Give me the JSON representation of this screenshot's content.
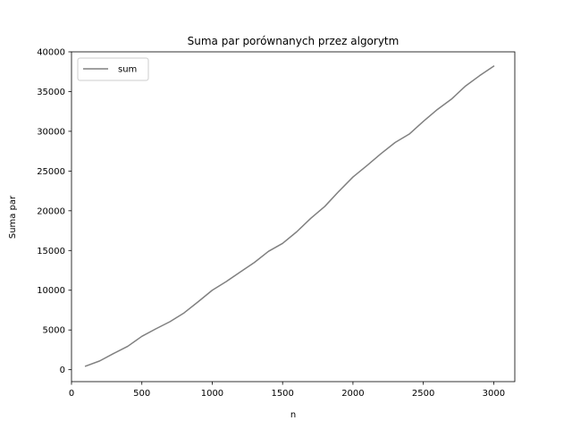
{
  "chart_data": {
    "type": "line",
    "title": "Suma par porównanych przez algorytm",
    "xlabel": "n",
    "ylabel": "Suma par",
    "xlim": [
      0,
      3150
    ],
    "ylim": [
      -1500,
      40000
    ],
    "xticks": [
      0,
      500,
      1000,
      1500,
      2000,
      2500,
      3000
    ],
    "yticks": [
      0,
      5000,
      10000,
      15000,
      20000,
      25000,
      30000,
      35000,
      40000
    ],
    "grid": false,
    "legend_position": "top-left",
    "series": [
      {
        "name": "sum",
        "color": "#808080",
        "x": [
          100,
          200,
          300,
          400,
          500,
          600,
          700,
          800,
          900,
          1000,
          1100,
          1200,
          1300,
          1400,
          1500,
          1600,
          1700,
          1800,
          1900,
          2000,
          2100,
          2200,
          2300,
          2400,
          2500,
          2600,
          2700,
          2800,
          2900,
          3000
        ],
        "y": [
          450,
          1100,
          2050,
          2950,
          4200,
          5150,
          6050,
          7150,
          8550,
          10000,
          11100,
          12300,
          13500,
          14900,
          15900,
          17350,
          19050,
          20550,
          22450,
          24250,
          25700,
          27200,
          28600,
          29650,
          31250,
          32750,
          34050,
          35700,
          37000,
          38200
        ]
      }
    ]
  }
}
